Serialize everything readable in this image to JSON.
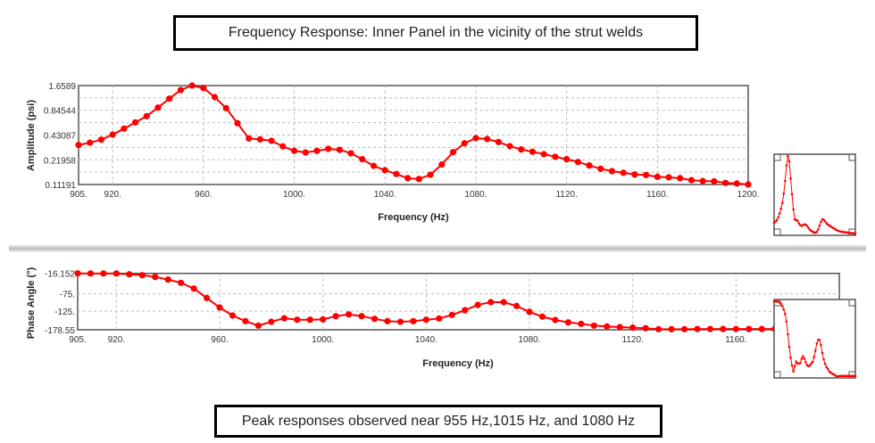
{
  "title": "Frequency Response: Inner Panel in the vicinity of the strut welds",
  "caption": "Peak responses observed near 955 Hz,1015 Hz, and 1080 Hz",
  "colors": {
    "series": "#ff0000",
    "grid": "#bbbbbb",
    "frame": "#555555"
  },
  "chart_data": [
    {
      "type": "line",
      "xlabel": "Frequency (Hz)",
      "ylabel": "Amplitude (psi)",
      "xlim": [
        905,
        1200
      ],
      "ylim": [
        0.11191,
        1.6589
      ],
      "yscale": "log",
      "grid": true,
      "x_ticks": [
        "905.",
        "920.",
        "960.",
        "1000.",
        "1040.",
        "1080.",
        "1120.",
        "1160.",
        "1200."
      ],
      "y_ticks": [
        "1.6589",
        "0.84544",
        "0.43087",
        "0.21958",
        "0.11191"
      ],
      "x": [
        905,
        910,
        915,
        920,
        925,
        930,
        935,
        940,
        945,
        950,
        955,
        960,
        965,
        970,
        975,
        980,
        985,
        990,
        995,
        1000,
        1005,
        1010,
        1015,
        1020,
        1025,
        1030,
        1035,
        1040,
        1045,
        1050,
        1055,
        1060,
        1065,
        1070,
        1075,
        1080,
        1085,
        1090,
        1095,
        1100,
        1105,
        1110,
        1115,
        1120,
        1125,
        1130,
        1135,
        1140,
        1145,
        1150,
        1155,
        1160,
        1165,
        1170,
        1175,
        1180,
        1185,
        1190,
        1195,
        1200
      ],
      "values": [
        0.328,
        0.35,
        0.38,
        0.436,
        0.513,
        0.608,
        0.721,
        0.91,
        1.161,
        1.469,
        1.659,
        1.553,
        1.21,
        0.897,
        0.594,
        0.393,
        0.383,
        0.368,
        0.316,
        0.28,
        0.268,
        0.28,
        0.296,
        0.288,
        0.262,
        0.223,
        0.186,
        0.165,
        0.149,
        0.133,
        0.13,
        0.146,
        0.193,
        0.27,
        0.344,
        0.396,
        0.387,
        0.356,
        0.318,
        0.291,
        0.273,
        0.256,
        0.238,
        0.223,
        0.207,
        0.188,
        0.172,
        0.161,
        0.154,
        0.147,
        0.145,
        0.138,
        0.136,
        0.133,
        0.126,
        0.123,
        0.122,
        0.117,
        0.115,
        0.112
      ]
    },
    {
      "type": "line",
      "xlabel": "Frequency (Hz)",
      "ylabel": "Phase Angle (°)",
      "xlim": [
        905,
        1200
      ],
      "ylim": [
        -178.55,
        -16.152
      ],
      "grid": true,
      "x_ticks": [
        "905.",
        "920.",
        "960.",
        "1000.",
        "1040.",
        "1080.",
        "1120.",
        "1160."
      ],
      "y_ticks": [
        "-16.152",
        "-75.",
        "-125.",
        "-178.55"
      ],
      "x": [
        905,
        910,
        915,
        920,
        925,
        930,
        935,
        940,
        945,
        950,
        955,
        960,
        965,
        970,
        975,
        980,
        985,
        990,
        995,
        1000,
        1005,
        1010,
        1015,
        1020,
        1025,
        1030,
        1035,
        1040,
        1045,
        1050,
        1055,
        1060,
        1065,
        1070,
        1075,
        1080,
        1085,
        1090,
        1095,
        1100,
        1105,
        1110,
        1115,
        1120,
        1125,
        1130,
        1135,
        1140,
        1145,
        1150,
        1155,
        1160,
        1165,
        1170,
        1175,
        1180,
        1185,
        1190,
        1195,
        1200
      ],
      "values": [
        -16.2,
        -16.5,
        -16.5,
        -16.5,
        -18.7,
        -21.3,
        -26.4,
        -34,
        -43.4,
        -59.8,
        -87,
        -114.4,
        -137.5,
        -153.7,
        -166.5,
        -155.5,
        -145.3,
        -149.6,
        -149.6,
        -148.6,
        -139.3,
        -134.2,
        -139.3,
        -147,
        -153.7,
        -155.5,
        -153.7,
        -149.6,
        -146,
        -135.7,
        -122.2,
        -106.8,
        -99,
        -99,
        -110,
        -127,
        -140.7,
        -150.3,
        -157.2,
        -161.4,
        -166.5,
        -169,
        -170.9,
        -172.5,
        -174,
        -176.8,
        -176.8,
        -176.8,
        -176.3,
        -176.3,
        -176.3,
        -176.3,
        -176.3,
        -176.3,
        -176.3,
        -176.3,
        -176.5,
        -176.5,
        -176.5,
        -176.5
      ]
    }
  ]
}
